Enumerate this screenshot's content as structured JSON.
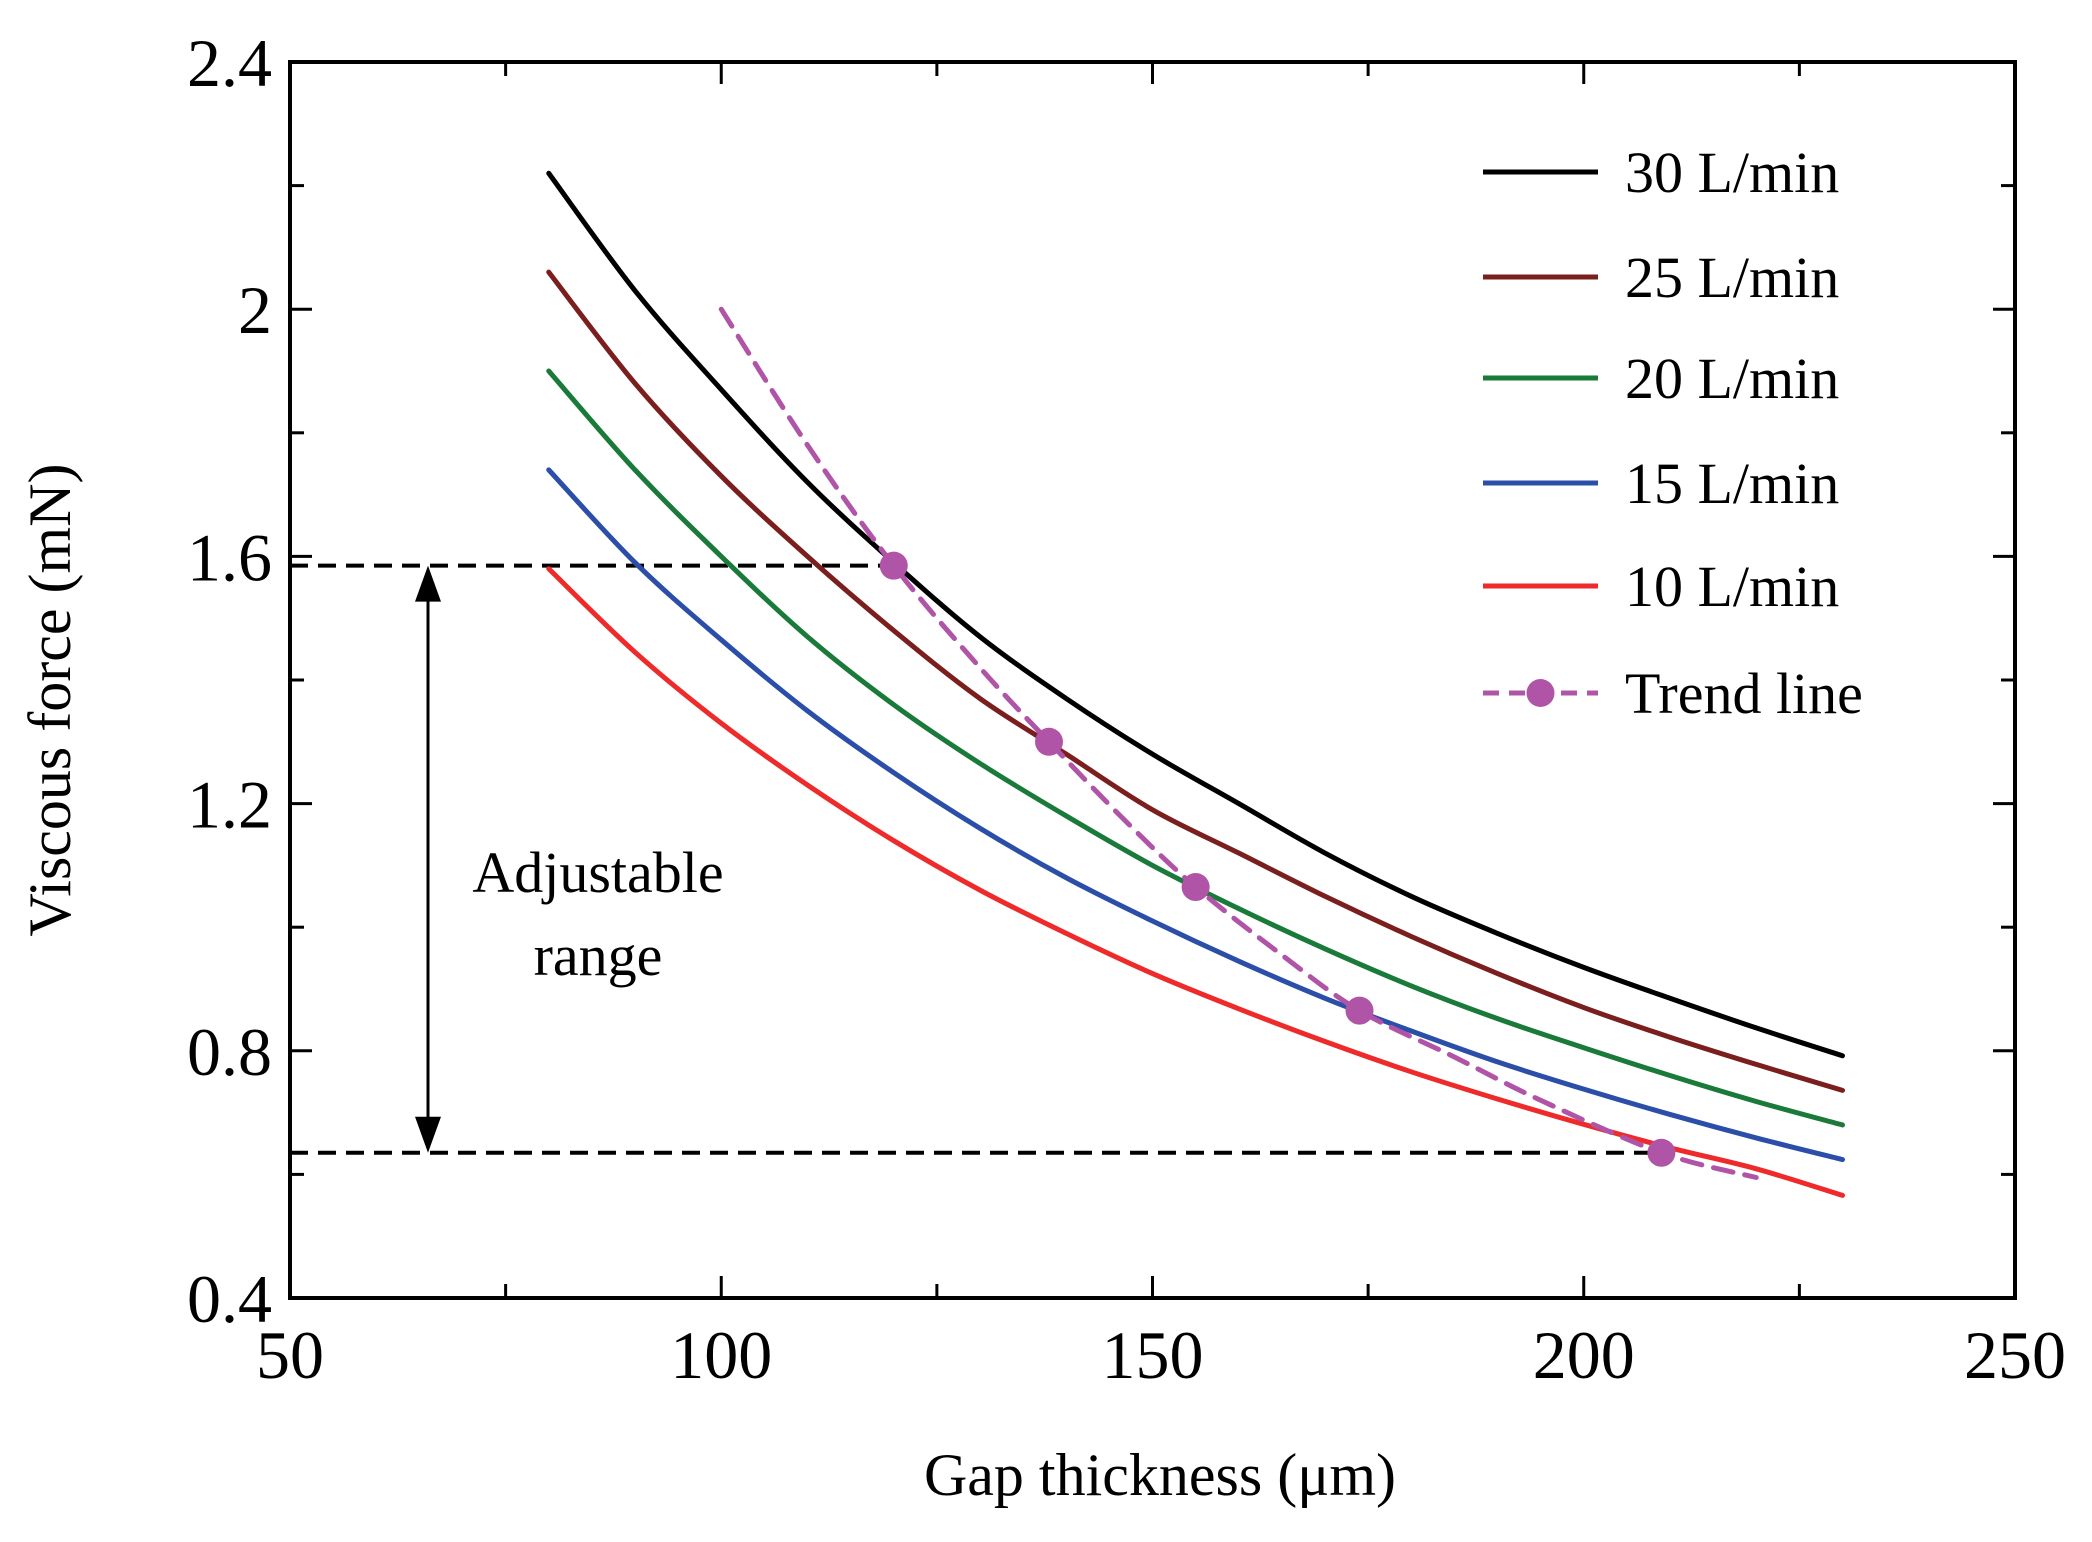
{
  "chart_data": {
    "type": "line",
    "xlabel": "Gap thickness (μm)",
    "ylabel": "Viscous force (mN)",
    "xlim": [
      50,
      250
    ],
    "ylim": [
      0.4,
      2.4
    ],
    "xticks": [
      50,
      100,
      150,
      200,
      250
    ],
    "xtick_labels": [
      "50",
      "100",
      "150",
      "200",
      "250"
    ],
    "yticks": [
      0.4,
      0.8,
      1.2,
      1.6,
      2.0,
      2.4
    ],
    "ytick_labels": [
      "0.4",
      "0.8",
      "1.2",
      "1.6",
      "2",
      "2.4"
    ],
    "grid": false,
    "legend_position": "top-right",
    "series": [
      {
        "name": "30 L/min",
        "color": "#000000",
        "style": "solid",
        "x": [
          80,
          90,
          100,
          110,
          120,
          130,
          140,
          150,
          160,
          170,
          180,
          190,
          200,
          210,
          220,
          230
        ],
        "values": [
          2.22,
          2.03,
          1.87,
          1.72,
          1.59,
          1.47,
          1.37,
          1.28,
          1.2,
          1.12,
          1.05,
          0.99,
          0.935,
          0.885,
          0.837,
          0.792
        ]
      },
      {
        "name": "25 L/min",
        "color": "#7B1E1E",
        "style": "solid",
        "x": [
          80,
          90,
          100,
          110,
          120,
          130,
          140,
          150,
          160,
          170,
          180,
          190,
          200,
          210,
          220,
          230
        ],
        "values": [
          2.06,
          1.88,
          1.73,
          1.6,
          1.48,
          1.37,
          1.28,
          1.19,
          1.12,
          1.05,
          0.985,
          0.925,
          0.87,
          0.822,
          0.778,
          0.736
        ]
      },
      {
        "name": "20 L/min",
        "color": "#1A7A3A",
        "style": "solid",
        "x": [
          80,
          90,
          100,
          110,
          120,
          130,
          140,
          150,
          160,
          170,
          180,
          190,
          200,
          210,
          220,
          230
        ],
        "values": [
          1.9,
          1.74,
          1.6,
          1.47,
          1.36,
          1.265,
          1.18,
          1.1,
          1.03,
          0.965,
          0.905,
          0.852,
          0.805,
          0.76,
          0.718,
          0.68
        ]
      },
      {
        "name": "15 L/min",
        "color": "#2B4FA8",
        "style": "solid",
        "x": [
          80,
          90,
          100,
          110,
          120,
          130,
          140,
          150,
          160,
          170,
          180,
          190,
          200,
          210,
          220,
          230
        ],
        "values": [
          1.74,
          1.59,
          1.465,
          1.35,
          1.25,
          1.16,
          1.08,
          1.01,
          0.945,
          0.885,
          0.832,
          0.782,
          0.738,
          0.697,
          0.659,
          0.624
        ]
      },
      {
        "name": "10 L/min",
        "color": "#EE2A2A",
        "style": "solid",
        "x": [
          80,
          90,
          100,
          110,
          120,
          130,
          140,
          150,
          160,
          170,
          180,
          190,
          200,
          210,
          220,
          230
        ],
        "values": [
          1.58,
          1.445,
          1.33,
          1.23,
          1.14,
          1.06,
          0.99,
          0.925,
          0.868,
          0.815,
          0.766,
          0.722,
          0.681,
          0.643,
          0.609,
          0.566
        ]
      },
      {
        "name": "Trend line",
        "color": "#B054A8",
        "style": "dashed",
        "markers": true,
        "x": [
          100,
          110,
          120,
          130,
          138,
          147,
          155,
          165,
          174,
          185,
          195,
          209,
          220
        ],
        "values": [
          2.0,
          1.78,
          1.585,
          1.42,
          1.3,
          1.17,
          1.065,
          0.955,
          0.865,
          0.79,
          0.72,
          0.635,
          0.595
        ],
        "marker_x": [
          120,
          138,
          155,
          174,
          209
        ],
        "marker_values": [
          1.585,
          1.3,
          1.065,
          0.865,
          0.635
        ]
      }
    ],
    "reference_lines": [
      {
        "y": 1.585,
        "x_start": 50,
        "x_end": 120
      },
      {
        "y": 0.635,
        "x_start": 50,
        "x_end": 209
      }
    ],
    "range_arrow": {
      "x": 66,
      "y_top": 1.585,
      "y_bottom": 0.635
    },
    "annotation": {
      "line1": "Adjustable",
      "line2": "range"
    }
  }
}
